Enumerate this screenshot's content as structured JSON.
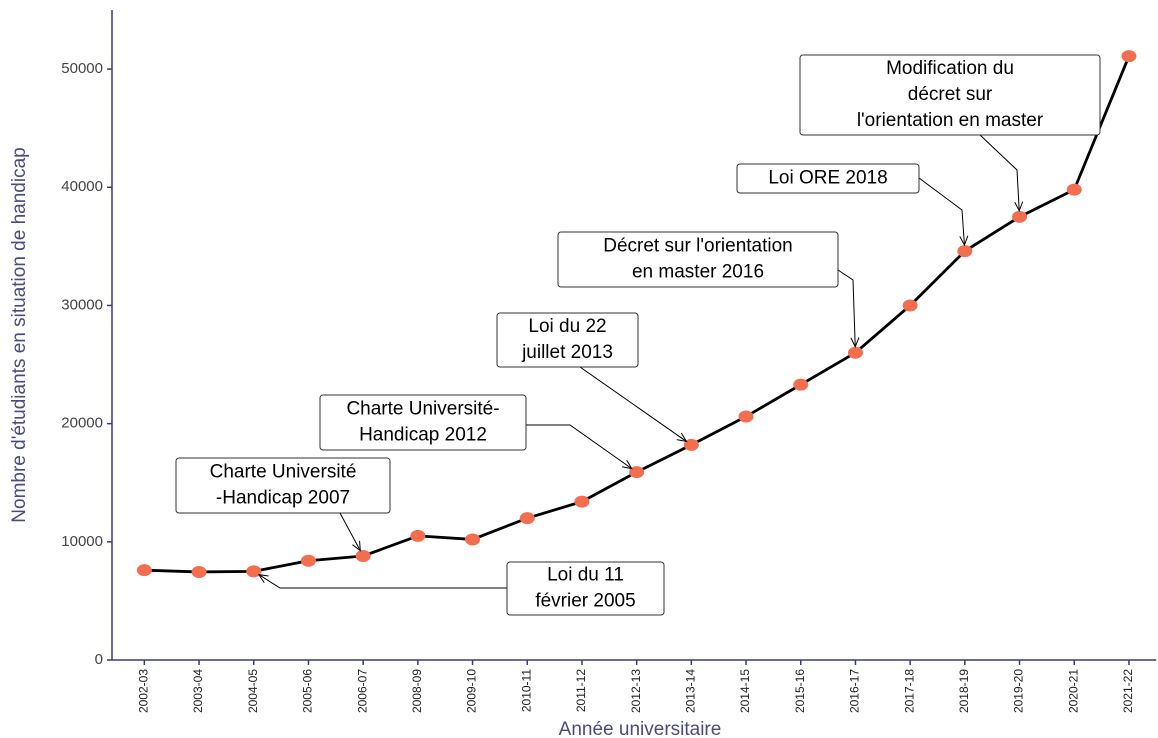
{
  "chart_data": {
    "type": "line",
    "xlabel": "Année universitaire",
    "ylabel": "Nombre d'étudiants en situation de handicap",
    "categories": [
      "2002-03",
      "2003-04",
      "2004-05",
      "2005-06",
      "2006-07",
      "2008-09",
      "2009-10",
      "2010-11",
      "2011-12",
      "2012-13",
      "2013-14",
      "2014-15",
      "2015-16",
      "2016-17",
      "2017-18",
      "2018-19",
      "2019-20",
      "2020-21",
      "2021-22"
    ],
    "series": [
      {
        "name": null,
        "color": "#f36e4f",
        "line_color": "#000000",
        "values": [
          7600,
          7450,
          7500,
          8400,
          8800,
          10500,
          10200,
          12000,
          13400,
          15900,
          18200,
          20600,
          23300,
          26000,
          30000,
          34600,
          37500,
          39800,
          51100
        ]
      }
    ],
    "ylim": [
      0,
      55000
    ],
    "yticks": [
      0,
      10000,
      20000,
      30000,
      40000,
      50000
    ],
    "grid": false,
    "annotations": [
      {
        "lines": [
          "Loi du 11",
          "février 2005"
        ]
      },
      {
        "lines": [
          "Charte Université",
          "-Handicap 2007"
        ]
      },
      {
        "lines": [
          "Charte Université-",
          "Handicap 2012"
        ]
      },
      {
        "lines": [
          "Loi du 22",
          "juillet 2013"
        ]
      },
      {
        "lines": [
          "Décret sur l'orientation",
          "en master 2016"
        ]
      },
      {
        "lines": [
          "Loi ORE 2018"
        ]
      },
      {
        "lines": [
          "Modification du",
          "décret sur",
          "l'orientation en master"
        ]
      }
    ]
  }
}
